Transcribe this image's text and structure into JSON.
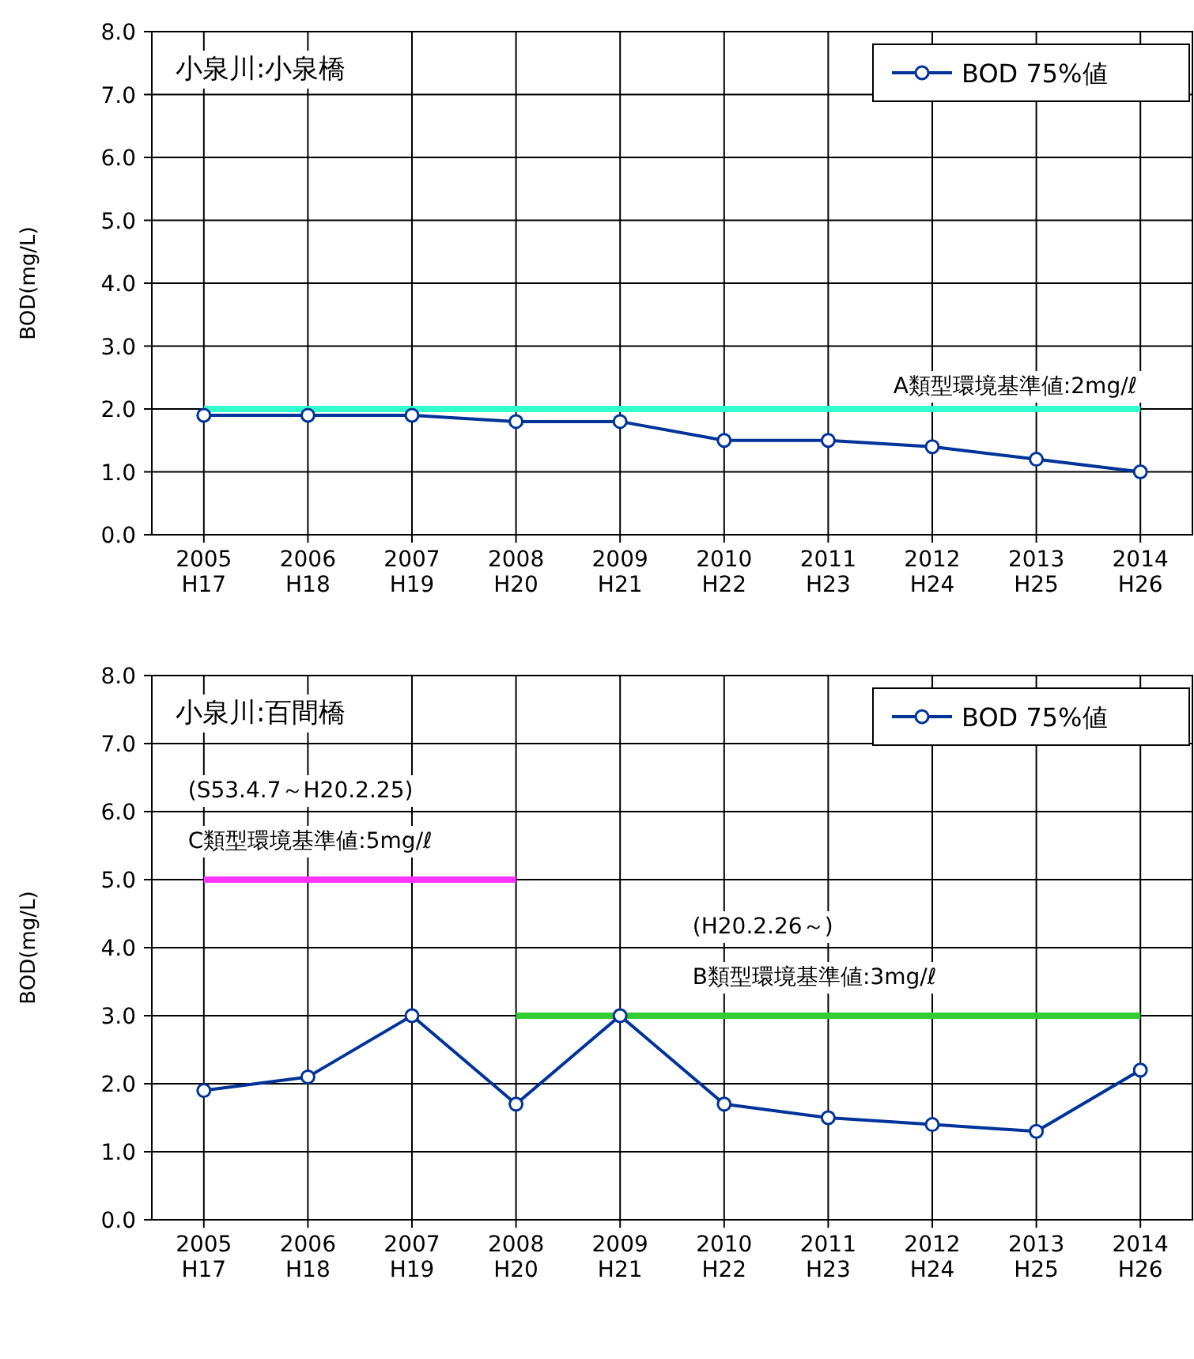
{
  "chart_data": [
    {
      "type": "line",
      "title": "小泉川:小泉橋",
      "ylabel": "BOD(mg/L)",
      "categories": [
        "2005 H17",
        "2006 H18",
        "2007 H19",
        "2008 H20",
        "2009 H21",
        "2010 H22",
        "2011 H23",
        "2012 H24",
        "2013 H25",
        "2014 H26"
      ],
      "series": [
        {
          "name": "BOD 75%値",
          "color": "#003399",
          "values": [
            1.9,
            1.9,
            1.9,
            1.8,
            1.8,
            1.5,
            1.5,
            1.4,
            1.2,
            1.0
          ]
        }
      ],
      "ylim": [
        0,
        8
      ],
      "yticks": [
        {
          "value": 0,
          "label": "0.0"
        },
        {
          "value": 1,
          "label": "1.0"
        },
        {
          "value": 2,
          "label": "2.0"
        },
        {
          "value": 3,
          "label": "3.0"
        },
        {
          "value": 4,
          "label": "4.0"
        },
        {
          "value": 5,
          "label": "5.0"
        },
        {
          "value": 6,
          "label": "6.0"
        },
        {
          "value": 7,
          "label": "7.0"
        },
        {
          "value": 8,
          "label": "8.0"
        }
      ],
      "ref_lines": [
        {
          "axis": "y",
          "value": 2,
          "label": "A類型環境基準値:2mg/ℓ",
          "color": "#33ffcc"
        }
      ],
      "grid": true,
      "legend": "top right",
      "marker": "circle"
    },
    {
      "type": "line",
      "title": "小泉川:百間橋",
      "ylabel": "BOD(mg/L)",
      "categories": [
        "2005 H17",
        "2006 H18",
        "2007 H19",
        "2008 H20",
        "2009 H21",
        "2010 H22",
        "2011 H23",
        "2012 H24",
        "2013 H25",
        "2014 H26"
      ],
      "series": [
        {
          "name": "BOD 75%値",
          "color": "#003399",
          "values": [
            1.9,
            2.1,
            3.0,
            1.7,
            3.0,
            1.7,
            1.5,
            1.4,
            1.3,
            2.2
          ]
        },
        {
          "type": "line",
          "color": "#ff33ff",
          "x": [
            "2005 H17",
            "2008 H20"
          ],
          "values": [
            5,
            5
          ],
          "marker": "none"
        },
        {
          "type": "line",
          "color": "#33cc33",
          "x": [
            "2008 H20",
            "2014 H26"
          ],
          "values": [
            3,
            3
          ],
          "marker": "none"
        }
      ],
      "annotations": [
        "(S53.4.7～H20.2.25)",
        "C類型環境基準値:5mg/ℓ",
        "(H20.2.26～)",
        "B類型環境基準値:3mg/ℓ"
      ],
      "ylim": [
        0,
        8
      ],
      "yticks": [
        {
          "value": 0,
          "label": "0.0"
        },
        {
          "value": 1,
          "label": "1.0"
        },
        {
          "value": 2,
          "label": "2.0"
        },
        {
          "value": 3,
          "label": "3.0"
        },
        {
          "value": 4,
          "label": "4.0"
        },
        {
          "value": 5,
          "label": "5.0"
        },
        {
          "value": 6,
          "label": "6.0"
        },
        {
          "value": 7,
          "label": "7.0"
        },
        {
          "value": 8,
          "label": "8.0"
        }
      ],
      "grid": true,
      "legend": "top right",
      "marker": "circle"
    }
  ]
}
